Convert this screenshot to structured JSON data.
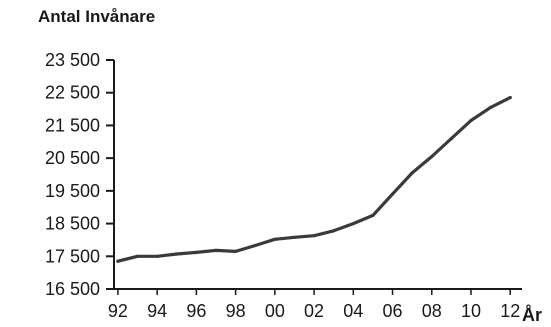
{
  "chart_data": {
    "type": "line",
    "title": "Antal Invånare",
    "xlabel": "År",
    "ylabel": "",
    "ylim": [
      16500,
      23500
    ],
    "yticks": [
      16500,
      17500,
      18500,
      19500,
      20500,
      21500,
      22500,
      23500
    ],
    "ytick_labels": [
      "16 500",
      "17 500",
      "18 500",
      "19 500",
      "20 500",
      "21 500",
      "22 500",
      "23 500"
    ],
    "xticks": [
      1992,
      1994,
      1996,
      1998,
      2000,
      2002,
      2004,
      2006,
      2008,
      2010,
      2012
    ],
    "xtick_labels": [
      "92",
      "94",
      "96",
      "98",
      "00",
      "02",
      "04",
      "06",
      "08",
      "10",
      "12"
    ],
    "grid": false,
    "series": [
      {
        "x": [
          1992,
          1993,
          1994,
          1995,
          1996,
          1997,
          1998,
          1999,
          2000,
          2001,
          2002,
          2003,
          2004,
          2005,
          2006,
          2007,
          2008,
          2009,
          2010,
          2011,
          2012
        ],
        "values": [
          17350,
          17500,
          17500,
          17570,
          17620,
          17680,
          17650,
          17830,
          18020,
          18080,
          18130,
          18280,
          18500,
          18750,
          19400,
          20050,
          20550,
          21100,
          21650,
          22050,
          22350
        ],
        "color": "#3a3a3a"
      }
    ]
  }
}
